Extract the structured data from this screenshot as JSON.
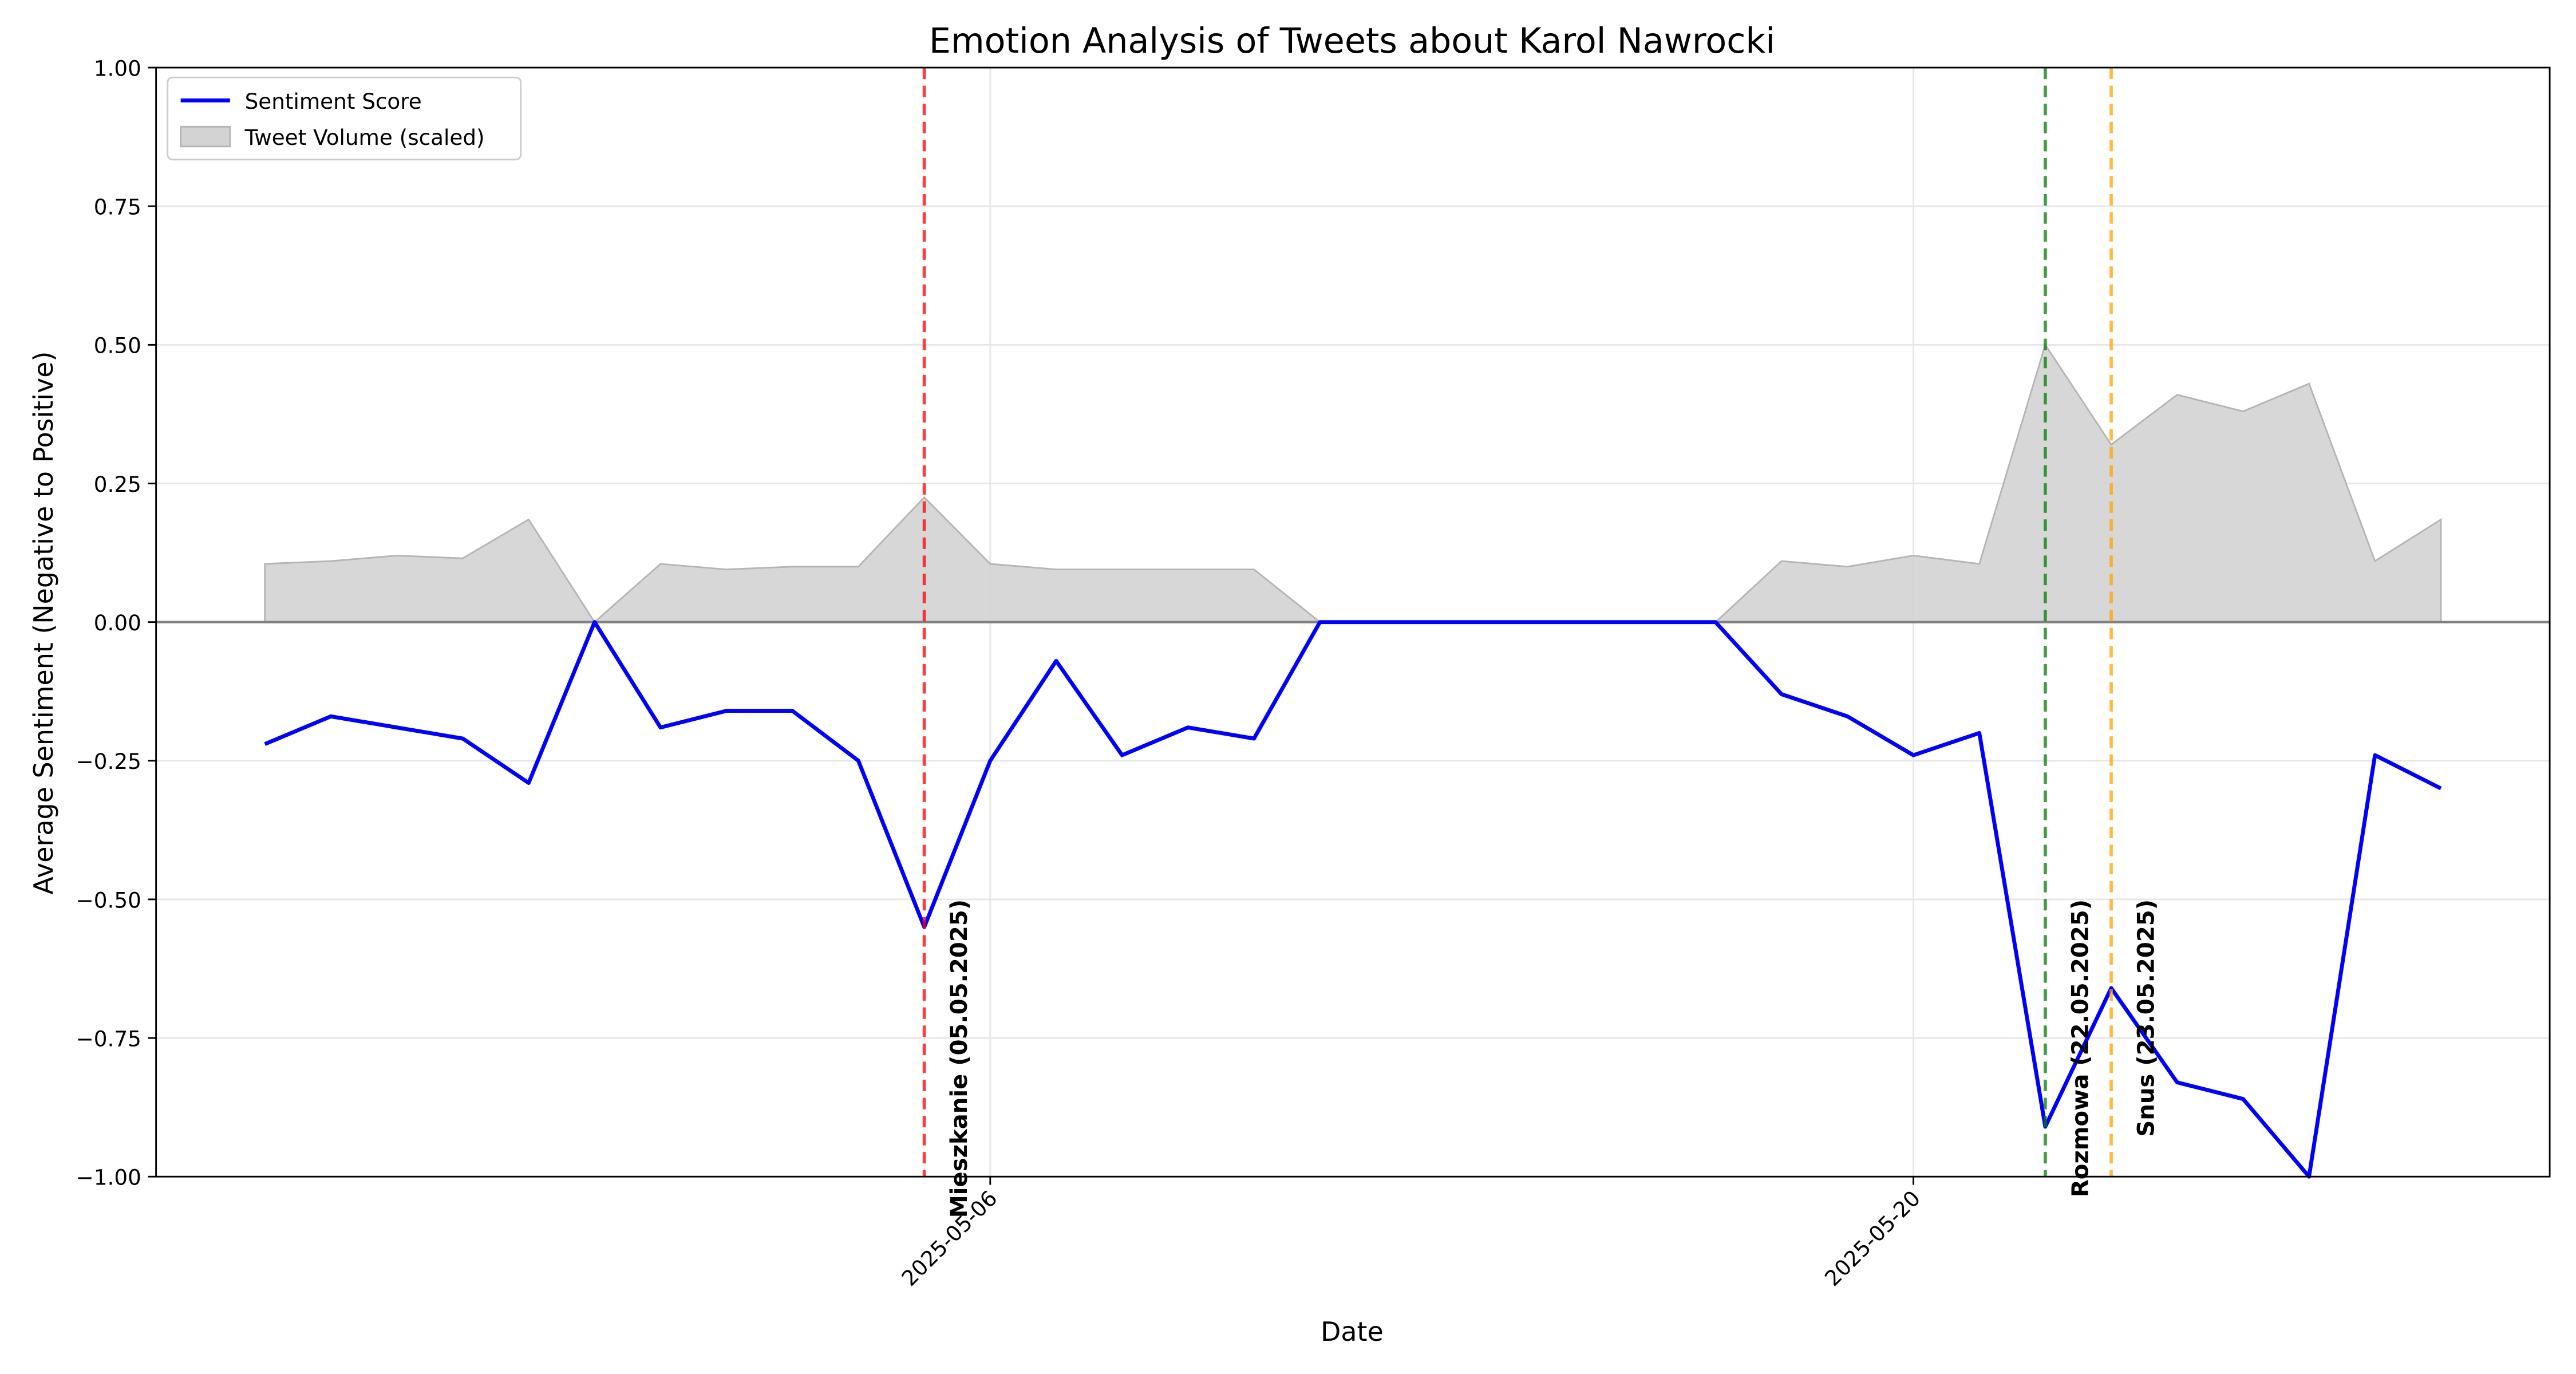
{
  "chart_data": {
    "type": "line",
    "title": "Emotion Analysis of Tweets about Karol Nawrocki",
    "x_label": "Date",
    "y_label": "Average Sentiment (Negative to Positive)",
    "x": [
      "2025-04-25",
      "2025-04-26",
      "2025-04-27",
      "2025-04-28",
      "2025-04-29",
      "2025-04-30",
      "2025-05-01",
      "2025-05-02",
      "2025-05-03",
      "2025-05-04",
      "2025-05-05",
      "2025-05-06",
      "2025-05-07",
      "2025-05-08",
      "2025-05-09",
      "2025-05-10",
      "2025-05-11",
      "2025-05-12",
      "2025-05-13",
      "2025-05-14",
      "2025-05-15",
      "2025-05-16",
      "2025-05-17",
      "2025-05-18",
      "2025-05-19",
      "2025-05-20",
      "2025-05-21",
      "2025-05-22",
      "2025-05-23",
      "2025-05-24",
      "2025-05-25",
      "2025-05-26",
      "2025-05-27",
      "2025-05-28"
    ],
    "series": [
      {
        "name": "Sentiment Score",
        "color": "#0000ff",
        "kind": "line",
        "values": [
          -0.22,
          -0.17,
          -0.19,
          -0.21,
          -0.29,
          0,
          -0.19,
          -0.16,
          -0.16,
          -0.25,
          -0.55,
          -0.25,
          -0.07,
          -0.24,
          -0.19,
          -0.21,
          0,
          0,
          0,
          0,
          0,
          0,
          0,
          -0.13,
          -0.17,
          -0.24,
          -0.2,
          -0.91,
          -0.66,
          -0.83,
          -0.86,
          -1.0,
          -0.24,
          -0.3
        ]
      },
      {
        "name": "Tweet Volume (scaled)",
        "color": "#d3d3d3",
        "kind": "area",
        "values": [
          0.105,
          0.11,
          0.12,
          0.115,
          0.185,
          0,
          0.105,
          0.095,
          0.1,
          0.1,
          0.225,
          0.105,
          0.095,
          0.095,
          0.095,
          0.095,
          0,
          0,
          0,
          0,
          0,
          0,
          0,
          0.11,
          0.1,
          0.12,
          0.105,
          0.5,
          0.32,
          0.41,
          0.38,
          0.43,
          0.11,
          0.185
        ]
      }
    ],
    "events": [
      {
        "date": "2025-05-05",
        "label": "Mieszkanie (05.05.2025)",
        "color": "#ff0000"
      },
      {
        "date": "2025-05-22",
        "label": "Rozmowa (22.05.2025)",
        "color": "#008000"
      },
      {
        "date": "2025-05-23",
        "label": "Snus (23.05.2025)",
        "color": "#ffa500"
      }
    ],
    "reference_line": 0,
    "xlim": [
      "2025-04-23T08:24",
      "2025-05-29T15:36"
    ],
    "xticks": [
      "2025-05-06",
      "2025-05-20"
    ],
    "ylim": [
      -1,
      1
    ],
    "yticks": [
      {
        "value": -1,
        "label": "−1.00"
      },
      {
        "value": -0.75,
        "label": "−0.75"
      },
      {
        "value": -0.5,
        "label": "−0.50"
      },
      {
        "value": -0.25,
        "label": "−0.25"
      },
      {
        "value": 0,
        "label": "0.00"
      },
      {
        "value": 0.25,
        "label": "0.25"
      },
      {
        "value": 0.5,
        "label": "0.50"
      },
      {
        "value": 0.75,
        "label": "0.75"
      },
      {
        "value": 1,
        "label": "1.00"
      }
    ],
    "grid": true,
    "legend": "upper left"
  }
}
